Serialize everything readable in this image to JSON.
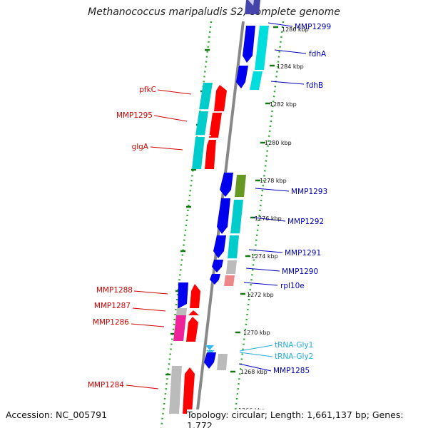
{
  "title": "Methanococcus maripaludis S2, complete genome",
  "accession": "Accession: NC_005791",
  "topology": "Topology: circular; Length: 1,661,137 bp; Genes: 1,772",
  "colors": {
    "cds_forward": "#0000ee",
    "cds_reverse": "#ff0000",
    "cog_cyan": "#00cccc",
    "cog_olive": "#669922",
    "cog_gray": "#bbbbbb",
    "cog_pink": "#ee66aa",
    "cog_salmon": "#ee8888",
    "trna": "#33bbee",
    "ring_dots": "#22aa22",
    "ticks": "#006600",
    "backbone": "#888888",
    "label_left": "#d00000",
    "label_right": "#0000bb",
    "label_trna": "#22aadd"
  },
  "kbp_markers": [
    "1286 kbp",
    "1284 kbp",
    "1282 kbp",
    "1280 kbp",
    "1278 kbp",
    "1276 kbp",
    "1274 kbp",
    "1272 kbp",
    "1270 kbp",
    "1268 kbp",
    "1266 kbp"
  ],
  "genes_left": [
    "pfkC",
    "MMP1295",
    "glgA",
    "MMP1288",
    "MMP1287",
    "MMP1286",
    "MMP1284"
  ],
  "genes_right": [
    "MMP1299",
    "fdhA",
    "fdhB",
    "MMP1293",
    "MMP1292",
    "MMP1291",
    "MMP1290",
    "rpl10e",
    "MMP1285"
  ],
  "trna_labels": [
    "tRNA-Gly1",
    "tRNA-Gly2"
  ]
}
